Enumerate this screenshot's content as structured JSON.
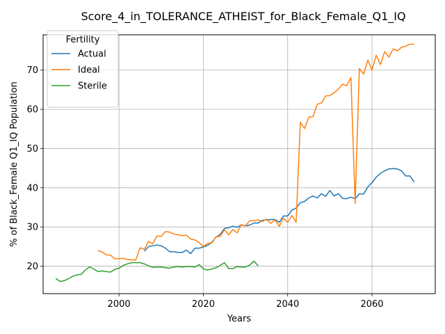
{
  "chart_data": {
    "type": "line",
    "title": "Score_4_in_TOLERANCE_ATHEIST_for_Black_Female_Q1_IQ",
    "xlabel": "Years",
    "ylabel": "% of Black_Female Q1_IQ Population",
    "xlim": [
      1982,
      2075
    ],
    "ylim": [
      13,
      79
    ],
    "xticks": [
      2000,
      2020,
      2040,
      2060
    ],
    "yticks": [
      20,
      30,
      40,
      50,
      60,
      70
    ],
    "grid": true,
    "legend": {
      "title": "Fertility",
      "position": "top-left"
    },
    "series": [
      {
        "name": "Actual",
        "color": "#1f77b4",
        "x": [
          2006,
          2007,
          2008,
          2009,
          2010,
          2011,
          2012,
          2013,
          2014,
          2015,
          2016,
          2017,
          2018,
          2019,
          2020,
          2021,
          2022,
          2023,
          2024,
          2025,
          2026,
          2027,
          2028,
          2029,
          2030,
          2031,
          2032,
          2033,
          2034,
          2035,
          2036,
          2037,
          2038,
          2039,
          2040,
          2041,
          2042,
          2043,
          2044,
          2045,
          2046,
          2047,
          2048,
          2049,
          2050,
          2051,
          2052,
          2053,
          2054,
          2055,
          2056,
          2057,
          2058,
          2059,
          2060,
          2061,
          2062,
          2063,
          2064,
          2065,
          2066,
          2067,
          2068,
          2069,
          2070
        ],
        "values": [
          23.8,
          25.0,
          25.2,
          25.4,
          25.2,
          24.6,
          23.7,
          23.7,
          23.5,
          23.5,
          24.1,
          23.2,
          24.6,
          24.6,
          24.9,
          25.3,
          26.1,
          27.4,
          28.1,
          29.6,
          29.8,
          30.2,
          29.9,
          30.5,
          30.3,
          30.5,
          31.0,
          31.0,
          31.7,
          31.8,
          31.9,
          31.9,
          31.2,
          32.8,
          32.8,
          34.3,
          34.8,
          36.2,
          36.5,
          37.4,
          37.9,
          37.4,
          38.5,
          37.8,
          39.3,
          37.9,
          38.5,
          37.3,
          37.2,
          37.6,
          37.2,
          38.4,
          38.4,
          40.2,
          41.3,
          42.7,
          43.7,
          44.3,
          44.8,
          44.9,
          44.8,
          44.3,
          43.0,
          43.0,
          41.5
        ]
      },
      {
        "name": "Ideal",
        "color": "#ff7f0e",
        "x": [
          1995,
          1996,
          1997,
          1998,
          1999,
          2000,
          2001,
          2002,
          2003,
          2004,
          2005,
          2006,
          2007,
          2008,
          2009,
          2010,
          2011,
          2012,
          2013,
          2014,
          2015,
          2016,
          2017,
          2018,
          2019,
          2020,
          2021,
          2022,
          2023,
          2024,
          2025,
          2026,
          2027,
          2028,
          2029,
          2030,
          2031,
          2032,
          2033,
          2034,
          2035,
          2036,
          2037,
          2038,
          2039,
          2040,
          2041,
          2042,
          2043,
          2044,
          2045,
          2046,
          2047,
          2048,
          2049,
          2050,
          2051,
          2052,
          2053,
          2054,
          2055,
          2056,
          2057,
          2058,
          2059,
          2060,
          2061,
          2062,
          2063,
          2064,
          2065,
          2066,
          2067,
          2068,
          2069,
          2070
        ],
        "values": [
          24.0,
          23.6,
          22.9,
          22.8,
          21.9,
          21.9,
          22.0,
          21.7,
          21.6,
          21.6,
          24.7,
          24.3,
          26.3,
          25.7,
          27.7,
          27.6,
          28.8,
          28.7,
          28.2,
          28.0,
          27.8,
          27.9,
          26.9,
          26.7,
          26.0,
          25.0,
          25.8,
          25.9,
          27.5,
          27.6,
          29.3,
          28.0,
          29.3,
          28.5,
          30.6,
          30.3,
          31.6,
          31.6,
          31.8,
          31.4,
          32.0,
          30.9,
          31.8,
          30.2,
          32.2,
          31.2,
          32.9,
          31.2,
          56.7,
          55.1,
          58.0,
          58.1,
          61.3,
          61.6,
          63.4,
          63.5,
          64.2,
          65.1,
          66.4,
          66.0,
          68.1,
          36.0,
          70.4,
          69.0,
          72.5,
          70.0,
          73.8,
          71.4,
          74.7,
          73.3,
          75.4,
          74.9,
          75.8,
          76.1,
          76.6,
          76.6
        ]
      },
      {
        "name": "Sterile",
        "color": "#2ca02c",
        "x": [
          1985,
          1986,
          1987,
          1988,
          1989,
          1990,
          1991,
          1992,
          1993,
          1994,
          1995,
          1996,
          1997,
          1998,
          1999,
          2000,
          2001,
          2002,
          2003,
          2004,
          2005,
          2006,
          2007,
          2008,
          2009,
          2010,
          2011,
          2012,
          2013,
          2014,
          2015,
          2016,
          2017,
          2018,
          2019,
          2020,
          2021,
          2022,
          2023,
          2024,
          2025,
          2026,
          2027,
          2028,
          2029,
          2030,
          2031,
          2032,
          2033
        ],
        "values": [
          16.9,
          16.1,
          16.3,
          16.8,
          17.4,
          17.8,
          17.9,
          19.0,
          19.8,
          19.3,
          18.6,
          18.8,
          18.6,
          18.5,
          19.2,
          19.5,
          20.2,
          20.6,
          20.9,
          20.9,
          20.9,
          20.6,
          20.1,
          19.7,
          19.8,
          19.8,
          19.6,
          19.5,
          19.8,
          19.9,
          19.8,
          19.9,
          19.9,
          19.8,
          20.4,
          19.3,
          19.0,
          19.3,
          19.6,
          20.2,
          20.9,
          19.4,
          19.4,
          19.9,
          19.8,
          19.8,
          20.3,
          21.3,
          20.1
        ]
      }
    ]
  }
}
